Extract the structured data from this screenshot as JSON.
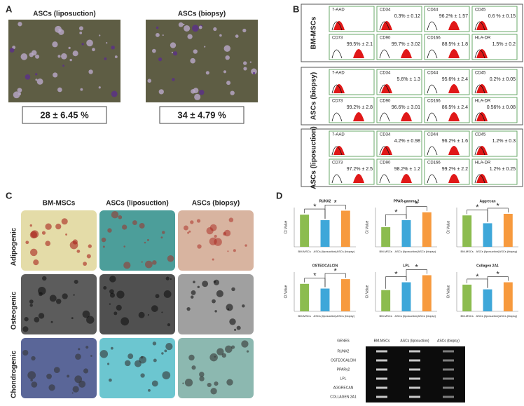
{
  "panel_labels": [
    "A",
    "B",
    "C",
    "D"
  ],
  "panel_a": {
    "images": [
      {
        "title": "ASCs (liposuction)",
        "value": "28 ± 6.45 %"
      },
      {
        "title": "ASCs (biopsy)",
        "value": "34 ± 4.79 %"
      }
    ]
  },
  "panel_b": {
    "groups": [
      {
        "label": "BM-MSCs",
        "cells": [
          {
            "marker": "7-AAD"
          },
          {
            "marker": "CD34",
            "value": "0.3% ± 0.12"
          },
          {
            "marker": "CD44",
            "value": "96.2% ± 1.57"
          },
          {
            "marker": "CD45",
            "value": "0.6 % ± 0.15"
          },
          {
            "marker": "CD73",
            "value": "99.5% ± 2.1"
          },
          {
            "marker": "CD90",
            "value": "99.7% ± 3.02"
          },
          {
            "marker": "CD166",
            "value": "88.5% ± 1.8"
          },
          {
            "marker": "HLA-DR",
            "value": "1.5% ± 0.2"
          }
        ]
      },
      {
        "label": "ASCs (biopsy)",
        "cells": [
          {
            "marker": "7-AAD"
          },
          {
            "marker": "CD34",
            "value": "5.6% ± 1.3"
          },
          {
            "marker": "CD44",
            "value": "95.6% ± 2.4"
          },
          {
            "marker": "CD45",
            "value": "0.2% ± 0.05"
          },
          {
            "marker": "CD73",
            "value": "99.2% ± 2.8"
          },
          {
            "marker": "CD90",
            "value": "96.6% ± 3.01"
          },
          {
            "marker": "CD166",
            "value": "86.5% ± 2.4"
          },
          {
            "marker": "HLA-DR",
            "value": "0.56% ± 0.08"
          }
        ]
      },
      {
        "label": "ASCs (liposuction)",
        "cells": [
          {
            "marker": "7-AAD"
          },
          {
            "marker": "CD34",
            "value": "4.2% ± 0.98"
          },
          {
            "marker": "CD44",
            "value": "96.2% ± 1.6"
          },
          {
            "marker": "CD45",
            "value": "1.2% ± 0.3"
          },
          {
            "marker": "CD73",
            "value": "97.2% ± 2.5"
          },
          {
            "marker": "CD90",
            "value": "98.2% ± 1.2"
          },
          {
            "marker": "CD166",
            "value": "99.2% ± 2.2"
          },
          {
            "marker": "HLA-DR",
            "value": "1.2% ± 0.25"
          }
        ]
      }
    ]
  },
  "panel_c": {
    "columns": [
      "BM-MSCs",
      "ASCs (liposuction)",
      "ASCs (biopsy)"
    ],
    "rows": [
      "Adipogenic",
      "Osteogenic",
      "Chondrogenic"
    ]
  },
  "chart_data": [
    {
      "type": "bar",
      "title": "RUNX2",
      "ylabel": "Ct Value",
      "categories": [
        "BM-MSCs",
        "ASCs (liposuction)",
        "ASCs (biopsy)"
      ],
      "values": [
        8.2,
        6.8,
        9.2
      ],
      "colors": [
        "#8cbc4f",
        "#3ea7d9",
        "#f79a3e"
      ],
      "ylim": [
        0,
        10
      ],
      "annotations": [
        "*",
        "*"
      ]
    },
    {
      "type": "bar",
      "title": "PPAR-gamma 2",
      "ylabel": "Ct Value",
      "categories": [
        "BM-MSCs",
        "ASCs (liposuction)",
        "ASCs (biopsy)"
      ],
      "values": [
        5.0,
        6.8,
        8.8
      ],
      "colors": [
        "#8cbc4f",
        "#3ea7d9",
        "#f79a3e"
      ],
      "ylim": [
        0,
        10
      ],
      "annotations": [
        "*",
        "*"
      ]
    },
    {
      "type": "bar",
      "title": "Aggrecan",
      "ylabel": "Ct Value",
      "categories": [
        "BM-MSCs",
        "ASCs (liposuction)",
        "ASCs (biopsy)"
      ],
      "values": [
        8.0,
        6.0,
        8.4
      ],
      "colors": [
        "#8cbc4f",
        "#3ea7d9",
        "#f79a3e"
      ],
      "ylim": [
        0,
        10
      ],
      "annotations": [
        "*",
        "*"
      ]
    },
    {
      "type": "bar",
      "title": "OSTEOCALCIN",
      "ylabel": "Ct Value",
      "categories": [
        "BM-MSCs",
        "ASCs (liposuction)",
        "ASCs (biopsy)"
      ],
      "values": [
        7.0,
        5.8,
        8.2
      ],
      "colors": [
        "#8cbc4f",
        "#3ea7d9",
        "#f79a3e"
      ],
      "ylim": [
        0,
        10
      ],
      "annotations": [
        "*",
        "*"
      ]
    },
    {
      "type": "bar",
      "title": "LPL",
      "ylabel": "Ct Value",
      "categories": [
        "BM-MSCs",
        "ASCs (liposuction)",
        "ASCs (biopsy)"
      ],
      "values": [
        5.4,
        7.4,
        9.2
      ],
      "colors": [
        "#8cbc4f",
        "#3ea7d9",
        "#f79a3e"
      ],
      "ylim": [
        0,
        10
      ],
      "annotations": [
        "*",
        "*"
      ]
    },
    {
      "type": "bar",
      "title": "Collagen 2A1",
      "ylabel": "Ct Value",
      "categories": [
        "BM-MSCs",
        "ASCs (liposuction)",
        "ASCs (biopsy)"
      ],
      "values": [
        6.8,
        5.6,
        7.4
      ],
      "colors": [
        "#8cbc4f",
        "#3ea7d9",
        "#f79a3e"
      ],
      "ylim": [
        0,
        10
      ],
      "annotations": [
        "*",
        "*"
      ]
    }
  ],
  "gel": {
    "headers": [
      "GENES",
      "BM-MSCs",
      "ASCs (liposuction)",
      "ASCs (biopsy)"
    ],
    "genes": [
      "RUNX2",
      "OSTEOCALCIN",
      "PPARγ2",
      "LPL",
      "AGGRECAN",
      "COLLAGEN 2A1"
    ]
  }
}
